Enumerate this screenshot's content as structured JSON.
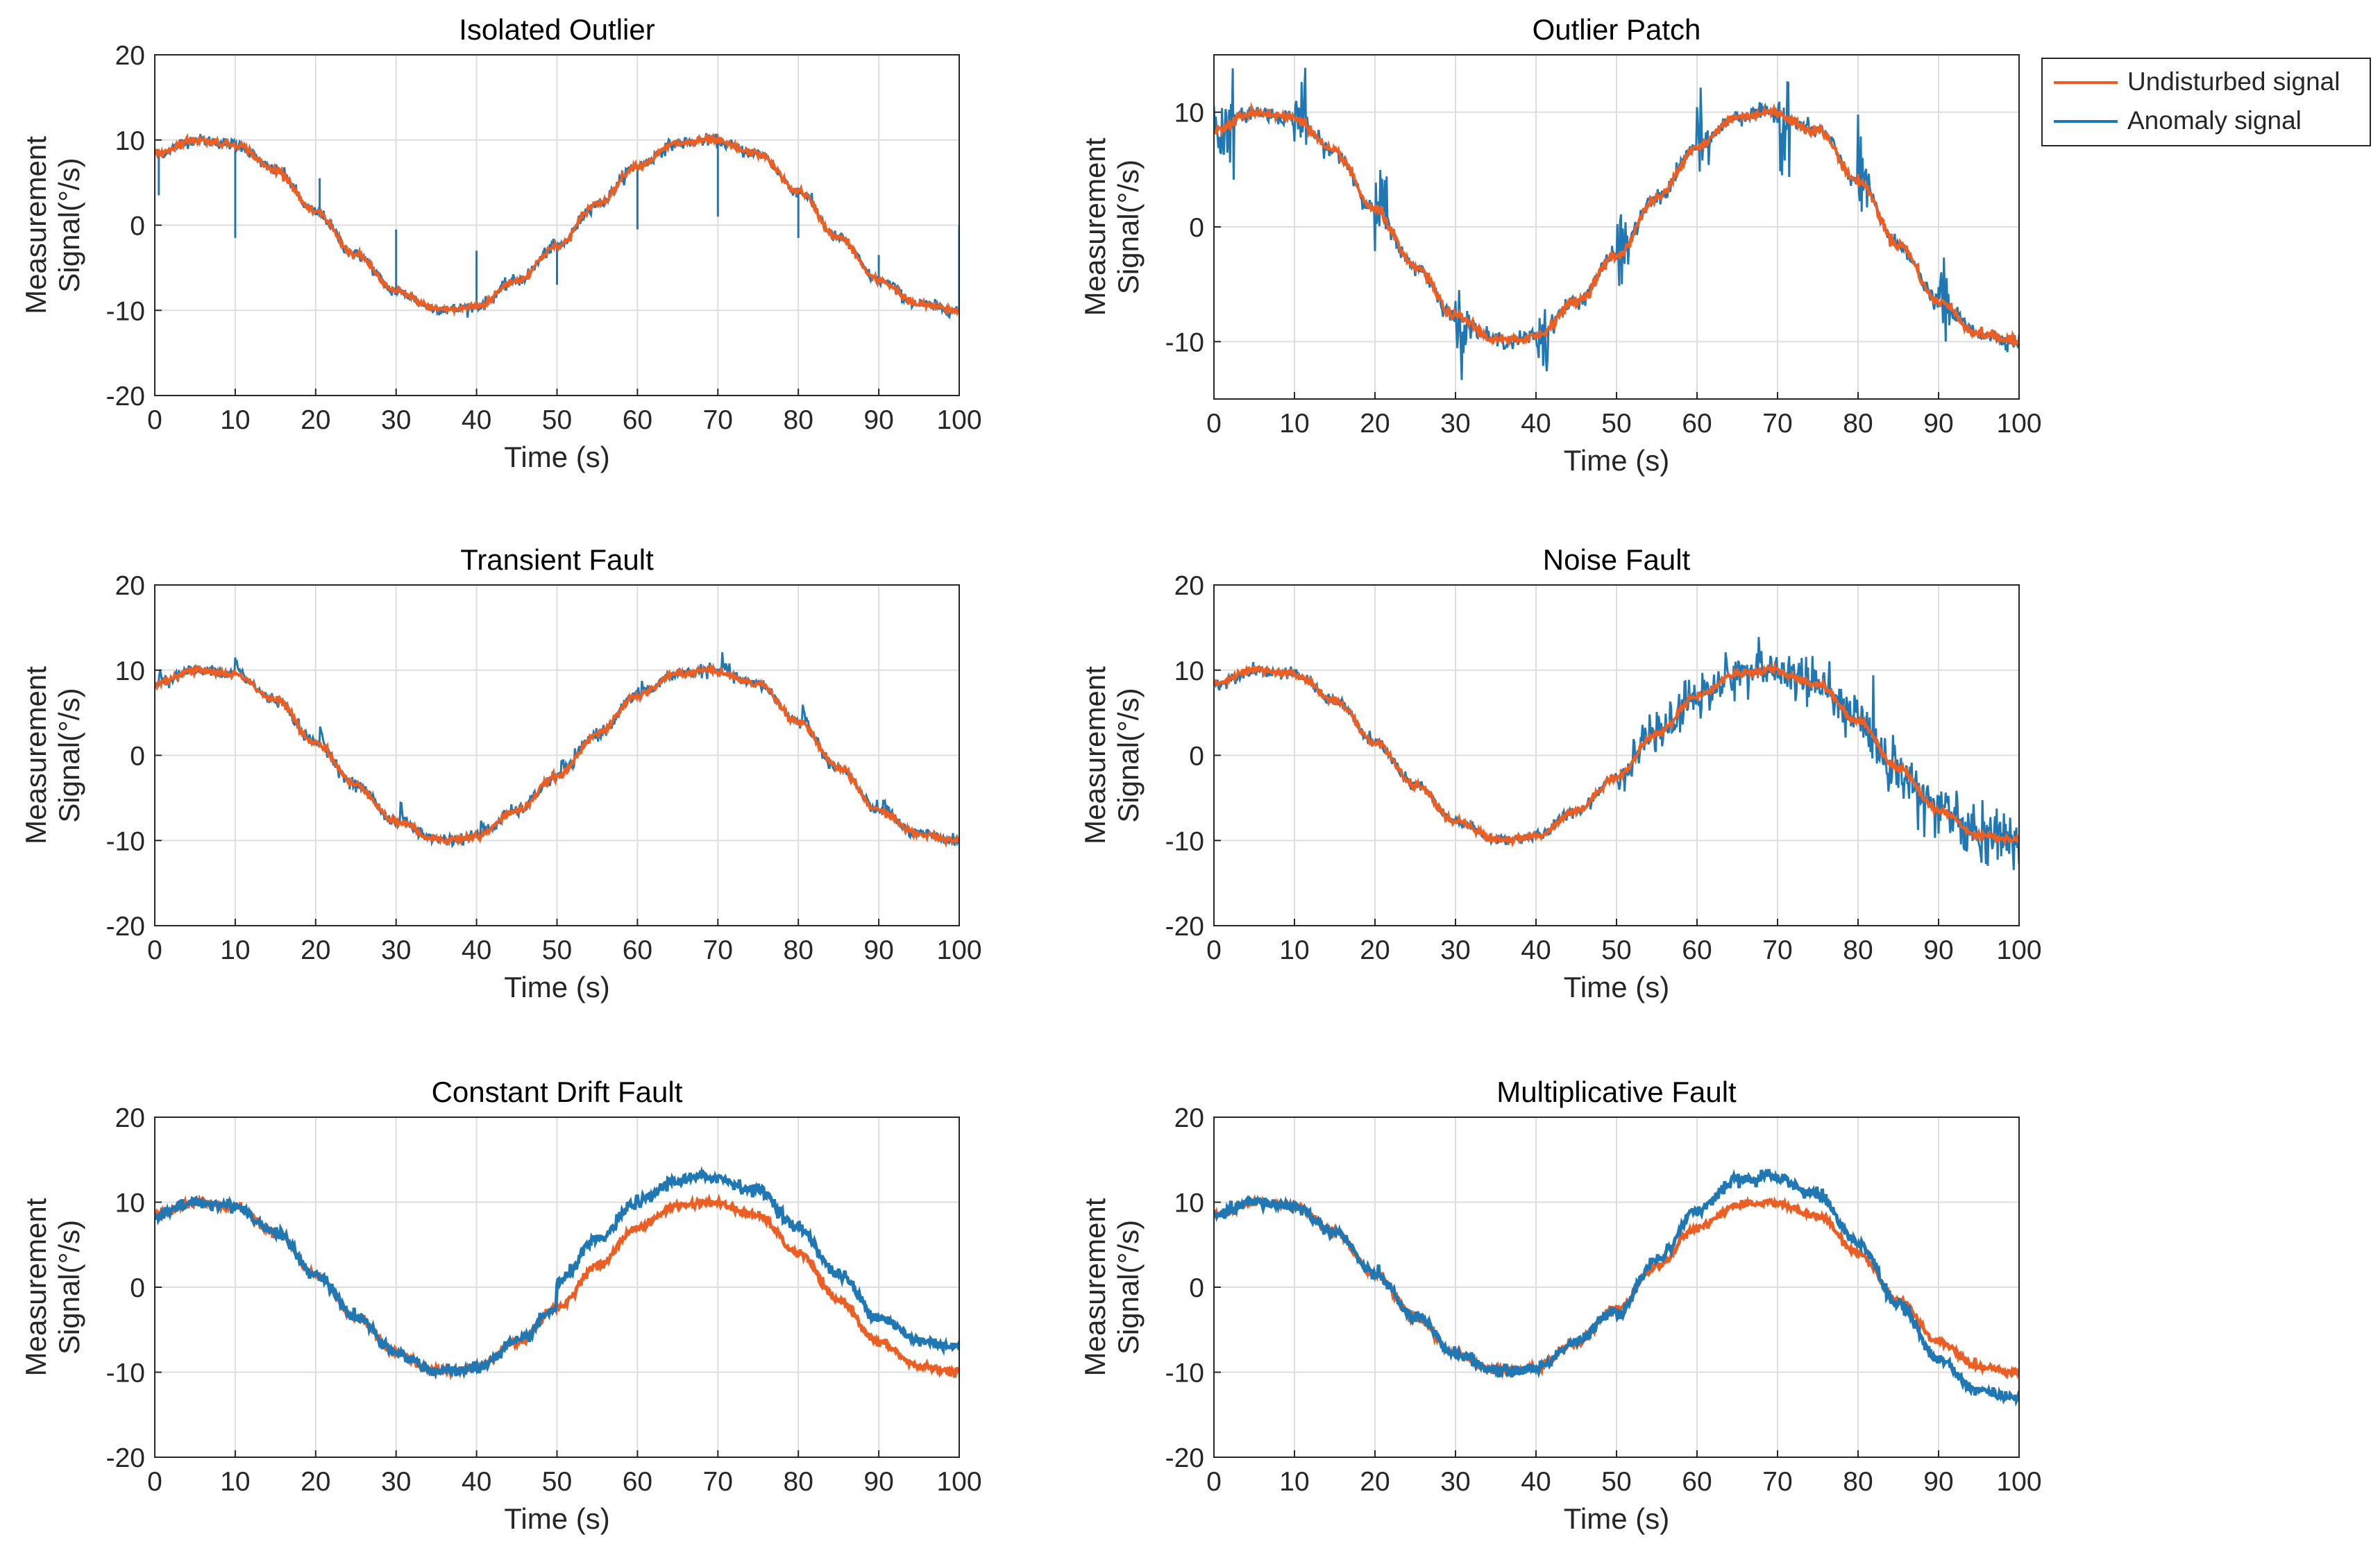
{
  "figure": {
    "legend": {
      "placement": "top-right (outside Outlier Patch panel)",
      "entries": [
        {
          "label": "Undisturbed signal",
          "color": "#EB5F24"
        },
        {
          "label": "Anomaly signal",
          "color": "#1F77B4"
        }
      ]
    },
    "colors": {
      "undisturbed": "#EB5F24",
      "anomaly": "#1F77B4",
      "grid": "#DEDEDE",
      "axes": "#262626"
    }
  },
  "chart_data": [
    {
      "type": "line",
      "title": "Isolated Outlier",
      "xlabel": "Time (s)",
      "ylabel": [
        "Measurement",
        "Signal(°/s)"
      ],
      "xlim": [
        0,
        100
      ],
      "ylim": [
        -20,
        20
      ],
      "xticks": [
        0,
        10,
        20,
        30,
        40,
        50,
        60,
        70,
        80,
        90,
        100
      ],
      "yticks": [
        20,
        10,
        0,
        -10,
        -20
      ],
      "grid": true,
      "series": [
        {
          "name": "Undisturbed signal",
          "x": [
            0,
            5,
            10,
            15,
            20,
            25,
            30,
            35,
            37,
            40,
            45,
            50,
            55,
            60,
            65,
            69,
            75,
            80,
            85,
            90,
            95,
            100
          ],
          "y": [
            8.4,
            10,
            9.5,
            6.5,
            1.5,
            -3.5,
            -7.8,
            -9.8,
            -9.9,
            -9.5,
            -6.5,
            -2.5,
            2.5,
            7,
            9.6,
            10,
            8.4,
            4,
            -1.5,
            -6.5,
            -9.3,
            -10
          ]
        },
        {
          "name": "Anomaly signal",
          "anomaly": "isolated_outliers",
          "events": [
            {
              "t": 0.5,
              "y": 3.5
            },
            {
              "t": 10,
              "y": -1.5
            },
            {
              "t": 20.5,
              "y": 5.5
            },
            {
              "t": 30,
              "y": -0.5
            },
            {
              "t": 40,
              "y": -3
            },
            {
              "t": 50,
              "y": -7
            },
            {
              "t": 60,
              "y": -0.5
            },
            {
              "t": 70,
              "y": 1
            },
            {
              "t": 80,
              "y": -1.5
            },
            {
              "t": 90,
              "y": -3.5
            },
            {
              "t": 100,
              "y": 0
            }
          ]
        }
      ]
    },
    {
      "type": "line",
      "title": "Outlier Patch",
      "xlabel": "Time (s)",
      "ylabel": [
        "Measurement",
        "Signal(°/s)"
      ],
      "xlim": [
        0,
        100
      ],
      "ylim": [
        -15,
        15
      ],
      "xticks": [
        0,
        10,
        20,
        30,
        40,
        50,
        60,
        70,
        80,
        90,
        100
      ],
      "yticks": [
        10,
        0,
        -10
      ],
      "grid": true,
      "series": [
        {
          "name": "Undisturbed signal",
          "x": [
            0,
            5,
            10,
            15,
            20,
            25,
            30,
            35,
            37,
            40,
            45,
            50,
            55,
            60,
            65,
            69,
            75,
            80,
            85,
            90,
            95,
            100
          ],
          "y": [
            8.4,
            10,
            9.5,
            6.5,
            1.5,
            -3.5,
            -7.8,
            -9.8,
            -9.9,
            -9.5,
            -6.5,
            -2.5,
            2.5,
            7,
            9.6,
            10,
            8.4,
            4,
            -1.5,
            -6.5,
            -9.3,
            -10
          ]
        },
        {
          "name": "Anomaly signal",
          "anomaly": "outlier_patches",
          "patches": [
            {
              "start": 0,
              "end": 2.5
            },
            {
              "start": 10,
              "end": 11.5
            },
            {
              "start": 20,
              "end": 21.5
            },
            {
              "start": 30,
              "end": 31.5
            },
            {
              "start": 40,
              "end": 41.5
            },
            {
              "start": 50,
              "end": 51.5
            },
            {
              "start": 60,
              "end": 61.5
            },
            {
              "start": 70,
              "end": 71.5
            },
            {
              "start": 80,
              "end": 81.5
            },
            {
              "start": 90,
              "end": 91.5
            }
          ],
          "patch_amplitude": 2
        }
      ]
    },
    {
      "type": "line",
      "title": "Transient Fault",
      "xlabel": "Time (s)",
      "ylabel": [
        "Measurement",
        "Signal(°/s)"
      ],
      "xlim": [
        0,
        100
      ],
      "ylim": [
        -20,
        20
      ],
      "xticks": [
        0,
        10,
        20,
        30,
        40,
        50,
        60,
        70,
        80,
        90,
        100
      ],
      "yticks": [
        20,
        10,
        0,
        -10,
        -20
      ],
      "grid": true,
      "series": [
        {
          "name": "Undisturbed signal",
          "x": [
            0,
            5,
            10,
            15,
            20,
            25,
            30,
            35,
            37,
            40,
            45,
            50,
            55,
            60,
            65,
            69,
            75,
            80,
            85,
            90,
            95,
            100
          ],
          "y": [
            8.4,
            10,
            9.5,
            6.5,
            1.5,
            -3.5,
            -7.8,
            -9.8,
            -9.9,
            -9.5,
            -6.5,
            -2.5,
            2.5,
            7,
            9.6,
            10,
            8.4,
            4,
            -1.5,
            -6.5,
            -9.3,
            -10
          ]
        },
        {
          "name": "Anomaly signal",
          "anomaly": "transient_faults",
          "events": [
            {
              "t": 0.5,
              "dy": 2
            },
            {
              "t": 10,
              "dy": 2
            },
            {
              "t": 20.5,
              "dy": 2
            },
            {
              "t": 30.5,
              "dy": 2
            },
            {
              "t": 40.5,
              "dy": 2
            },
            {
              "t": 50.5,
              "dy": 2
            },
            {
              "t": 60.5,
              "dy": 2
            },
            {
              "t": 70.5,
              "dy": 2
            },
            {
              "t": 80.5,
              "dy": 2
            },
            {
              "t": 90.5,
              "dy": 2
            }
          ],
          "decay_s": 1.2
        }
      ]
    },
    {
      "type": "line",
      "title": "Noise Fault",
      "xlabel": "Time (s)",
      "ylabel": [
        "Measurement",
        "Signal(°/s)"
      ],
      "xlim": [
        0,
        100
      ],
      "ylim": [
        -20,
        20
      ],
      "xticks": [
        0,
        10,
        20,
        30,
        40,
        50,
        60,
        70,
        80,
        90,
        100
      ],
      "yticks": [
        20,
        10,
        0,
        -10,
        -20
      ],
      "grid": true,
      "series": [
        {
          "name": "Undisturbed signal",
          "x": [
            0,
            5,
            10,
            15,
            20,
            25,
            30,
            35,
            37,
            40,
            45,
            50,
            55,
            60,
            65,
            69,
            75,
            80,
            85,
            90,
            95,
            100
          ],
          "y": [
            8.4,
            10,
            9.5,
            6.5,
            1.5,
            -3.5,
            -7.8,
            -9.8,
            -9.9,
            -9.5,
            -6.5,
            -2.5,
            2.5,
            7,
            9.6,
            10,
            8.4,
            4,
            -1.5,
            -6.5,
            -9.3,
            -10
          ]
        },
        {
          "name": "Anomaly signal",
          "anomaly": "noise_fault",
          "start": 50,
          "noise_amplitude": 1.8
        }
      ]
    },
    {
      "type": "line",
      "title": "Constant Drift Fault",
      "xlabel": "Time (s)",
      "ylabel": [
        "Measurement",
        "Signal(°/s)"
      ],
      "xlim": [
        0,
        100
      ],
      "ylim": [
        -20,
        20
      ],
      "xticks": [
        0,
        10,
        20,
        30,
        40,
        50,
        60,
        70,
        80,
        90,
        100
      ],
      "yticks": [
        20,
        10,
        0,
        -10,
        -20
      ],
      "grid": true,
      "series": [
        {
          "name": "Undisturbed signal",
          "x": [
            0,
            5,
            10,
            15,
            20,
            25,
            30,
            35,
            37,
            40,
            45,
            50,
            55,
            60,
            65,
            69,
            75,
            80,
            85,
            90,
            95,
            100
          ],
          "y": [
            8.4,
            10,
            9.5,
            6.5,
            1.5,
            -3.5,
            -7.8,
            -9.8,
            -9.9,
            -9.5,
            -6.5,
            -2.5,
            2.5,
            7,
            9.6,
            10,
            8.4,
            4,
            -1.5,
            -6.5,
            -9.3,
            -10
          ]
        },
        {
          "name": "Anomaly signal",
          "anomaly": "constant_drift",
          "start": 50,
          "offset": 3
        }
      ]
    },
    {
      "type": "line",
      "title": "Multiplicative Fault",
      "xlabel": "Time (s)",
      "ylabel": [
        "Measurement",
        "Signal(°/s)"
      ],
      "xlim": [
        0,
        100
      ],
      "ylim": [
        -20,
        20
      ],
      "xticks": [
        0,
        10,
        20,
        30,
        40,
        50,
        60,
        70,
        80,
        90,
        100
      ],
      "yticks": [
        20,
        10,
        0,
        -10,
        -20
      ],
      "grid": true,
      "series": [
        {
          "name": "Undisturbed signal",
          "x": [
            0,
            5,
            10,
            15,
            20,
            25,
            30,
            35,
            37,
            40,
            45,
            50,
            55,
            60,
            65,
            69,
            75,
            80,
            85,
            90,
            95,
            100
          ],
          "y": [
            8.4,
            10,
            9.5,
            6.5,
            1.5,
            -3.5,
            -7.8,
            -9.8,
            -9.9,
            -9.5,
            -6.5,
            -2.5,
            2.5,
            7,
            9.6,
            10,
            8.4,
            4,
            -1.5,
            -6.5,
            -9.3,
            -10
          ]
        },
        {
          "name": "Anomaly signal",
          "anomaly": "multiplicative",
          "start": 50,
          "gain": 1.3
        }
      ]
    }
  ]
}
